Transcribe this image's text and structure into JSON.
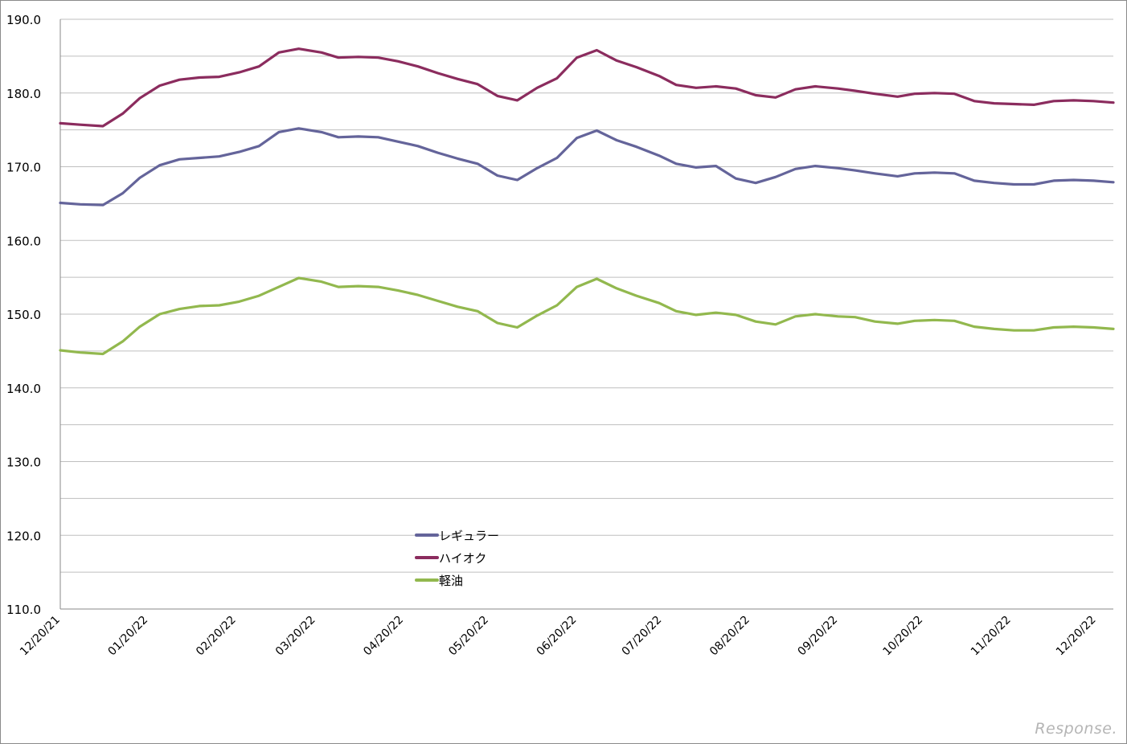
{
  "chart_data": {
    "type": "line",
    "title": "",
    "xlabel": "",
    "ylabel": "",
    "ylim": [
      110,
      190
    ],
    "y_ticks": [
      "110.0",
      "120.0",
      "130.0",
      "140.0",
      "150.0",
      "160.0",
      "170.0",
      "180.0",
      "190.0"
    ],
    "x_ticks": [
      "12/20/21",
      "01/20/22",
      "02/20/22",
      "03/20/22",
      "04/20/22",
      "05/20/22",
      "06/20/22",
      "07/20/22",
      "08/20/22",
      "09/20/22",
      "10/20/22",
      "11/20/22",
      "12/20/22"
    ],
    "grid": "horizontal",
    "legend_position": "lower-center",
    "x": [
      "2021-12-20",
      "2021-12-27",
      "2022-01-04",
      "2022-01-11",
      "2022-01-17",
      "2022-01-24",
      "2022-01-31",
      "2022-02-07",
      "2022-02-14",
      "2022-02-21",
      "2022-02-28",
      "2022-03-07",
      "2022-03-14",
      "2022-03-22",
      "2022-03-28",
      "2022-04-04",
      "2022-04-11",
      "2022-04-18",
      "2022-04-25",
      "2022-05-02",
      "2022-05-09",
      "2022-05-16",
      "2022-05-23",
      "2022-05-30",
      "2022-06-06",
      "2022-06-13",
      "2022-06-20",
      "2022-06-27",
      "2022-07-04",
      "2022-07-11",
      "2022-07-19",
      "2022-07-25",
      "2022-08-01",
      "2022-08-08",
      "2022-08-15",
      "2022-08-22",
      "2022-08-29",
      "2022-09-05",
      "2022-09-12",
      "2022-09-20",
      "2022-09-26",
      "2022-10-03",
      "2022-10-11",
      "2022-10-17",
      "2022-10-24",
      "2022-10-31",
      "2022-11-07",
      "2022-11-14",
      "2022-11-21",
      "2022-11-28",
      "2022-12-05",
      "2022-12-12",
      "2022-12-19",
      "2022-12-26"
    ],
    "series": [
      {
        "name": "レギュラー",
        "color": "#64649a",
        "values": [
          165.1,
          164.9,
          164.8,
          166.4,
          168.5,
          170.2,
          171.0,
          171.2,
          171.4,
          172.0,
          172.8,
          174.7,
          175.2,
          174.7,
          174.0,
          174.1,
          174.0,
          173.4,
          172.8,
          171.9,
          171.1,
          170.4,
          168.8,
          168.2,
          169.8,
          171.2,
          173.9,
          174.9,
          173.6,
          172.7,
          171.5,
          170.4,
          169.9,
          170.1,
          168.4,
          167.8,
          168.6,
          169.7,
          170.1,
          169.8,
          169.5,
          169.1,
          168.7,
          169.1,
          169.2,
          169.1,
          168.1,
          167.8,
          167.6,
          167.6,
          168.1,
          168.2,
          168.1,
          167.9
        ]
      },
      {
        "name": "ハイオク",
        "color": "#8b2c5e",
        "values": [
          175.9,
          175.7,
          175.5,
          177.2,
          179.3,
          181.0,
          181.8,
          182.1,
          182.2,
          182.8,
          183.6,
          185.5,
          186.0,
          185.5,
          184.8,
          184.9,
          184.8,
          184.3,
          183.6,
          182.7,
          181.9,
          181.2,
          179.6,
          179.0,
          180.7,
          182.0,
          184.8,
          185.8,
          184.4,
          183.5,
          182.3,
          181.1,
          180.7,
          180.9,
          180.6,
          179.7,
          179.4,
          180.5,
          180.9,
          180.6,
          180.3,
          179.9,
          179.5,
          179.9,
          180.0,
          179.9,
          178.9,
          178.6,
          178.5,
          178.4,
          178.9,
          179.0,
          178.9,
          178.7
        ]
      },
      {
        "name": "軽油",
        "color": "#92b84e",
        "values": [
          145.1,
          144.8,
          144.6,
          146.3,
          148.3,
          150.0,
          150.7,
          151.1,
          151.2,
          151.7,
          152.5,
          153.7,
          154.9,
          154.4,
          153.7,
          153.8,
          153.7,
          153.2,
          152.6,
          151.8,
          151.0,
          150.4,
          148.8,
          148.2,
          149.8,
          151.2,
          153.7,
          154.8,
          153.5,
          152.5,
          151.5,
          150.4,
          149.9,
          150.2,
          149.9,
          149.0,
          148.6,
          149.7,
          150.0,
          149.7,
          149.6,
          149.0,
          148.7,
          149.1,
          149.2,
          149.1,
          148.3,
          148.0,
          147.8,
          147.8,
          148.2,
          148.3,
          148.2,
          148.0
        ]
      }
    ]
  },
  "watermark": "Response."
}
